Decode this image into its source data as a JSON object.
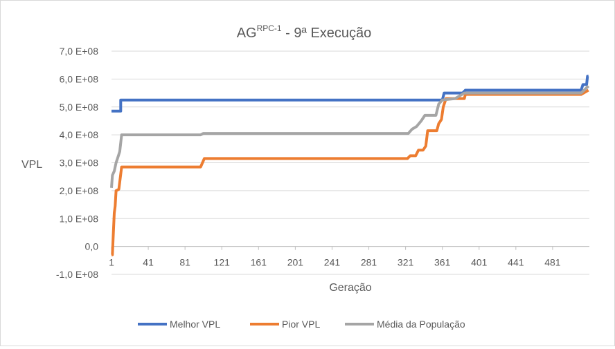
{
  "chart_data": {
    "type": "line",
    "title": "AG",
    "title_superscript": "RPC-1",
    "title_suffix": " - 9ª Execução",
    "xlabel": "Geração",
    "ylabel": "VPL",
    "xlim": [
      1,
      521
    ],
    "ylim": [
      -100000000,
      700000000
    ],
    "y_ticks": [
      {
        "value": -100000000,
        "label": "-1,0 E+08"
      },
      {
        "value": 0,
        "label": "0,0"
      },
      {
        "value": 100000000,
        "label": "1,0 E+08"
      },
      {
        "value": 200000000,
        "label": "2,0 E+08"
      },
      {
        "value": 300000000,
        "label": "3,0 E+08"
      },
      {
        "value": 400000000,
        "label": "4,0 E+08"
      },
      {
        "value": 500000000,
        "label": "5,0 E+08"
      },
      {
        "value": 600000000,
        "label": "6,0 E+08"
      },
      {
        "value": 700000000,
        "label": "7,0 E+08"
      }
    ],
    "x_ticks": [
      1,
      41,
      81,
      121,
      161,
      201,
      241,
      281,
      321,
      361,
      401,
      441,
      481
    ],
    "grid": true,
    "legend_position": "bottom",
    "series": [
      {
        "name": "Melhor VPL",
        "color": "#4472C4",
        "points": [
          [
            1,
            485000000.0
          ],
          [
            11,
            485000000.0
          ],
          [
            11,
            525000000.0
          ],
          [
            361,
            525000000.0
          ],
          [
            363,
            550000000.0
          ],
          [
            383,
            550000000.0
          ],
          [
            386,
            560000000.0
          ],
          [
            512,
            560000000.0
          ],
          [
            514,
            580000000.0
          ],
          [
            518,
            580000000.0
          ],
          [
            519,
            610000000.0
          ],
          [
            520,
            610000000.0
          ]
        ]
      },
      {
        "name": "Pior VPL",
        "color": "#ED7D31",
        "points": [
          [
            1,
            -30000000.0
          ],
          [
            2,
            -30000000.0
          ],
          [
            3,
            50000000.0
          ],
          [
            4,
            120000000.0
          ],
          [
            5,
            145000000.0
          ],
          [
            6,
            200000000.0
          ],
          [
            9,
            205000000.0
          ],
          [
            12,
            285000000.0
          ],
          [
            98,
            285000000.0
          ],
          [
            102,
            315000000.0
          ],
          [
            323,
            315000000.0
          ],
          [
            326,
            325000000.0
          ],
          [
            332,
            325000000.0
          ],
          [
            335,
            345000000.0
          ],
          [
            340,
            345000000.0
          ],
          [
            343,
            360000000.0
          ],
          [
            345,
            415000000.0
          ],
          [
            355,
            415000000.0
          ],
          [
            357,
            440000000.0
          ],
          [
            360,
            455000000.0
          ],
          [
            362,
            500000000.0
          ],
          [
            365,
            530000000.0
          ],
          [
            385,
            530000000.0
          ],
          [
            386,
            545000000.0
          ],
          [
            512,
            545000000.0
          ],
          [
            520,
            560000000.0
          ]
        ]
      },
      {
        "name": "Média da População",
        "color": "#A5A5A5",
        "points": [
          [
            1,
            210000000.0
          ],
          [
            2,
            255000000.0
          ],
          [
            4,
            270000000.0
          ],
          [
            6,
            300000000.0
          ],
          [
            8,
            320000000.0
          ],
          [
            10,
            340000000.0
          ],
          [
            12,
            400000000.0
          ],
          [
            98,
            400000000.0
          ],
          [
            101,
            405000000.0
          ],
          [
            324,
            405000000.0
          ],
          [
            328,
            420000000.0
          ],
          [
            333,
            430000000.0
          ],
          [
            338,
            450000000.0
          ],
          [
            342,
            470000000.0
          ],
          [
            354,
            470000000.0
          ],
          [
            357,
            510000000.0
          ],
          [
            361,
            525000000.0
          ],
          [
            375,
            530000000.0
          ],
          [
            385,
            550000000.0
          ],
          [
            512,
            550000000.0
          ],
          [
            520,
            575000000.0
          ]
        ]
      }
    ]
  }
}
